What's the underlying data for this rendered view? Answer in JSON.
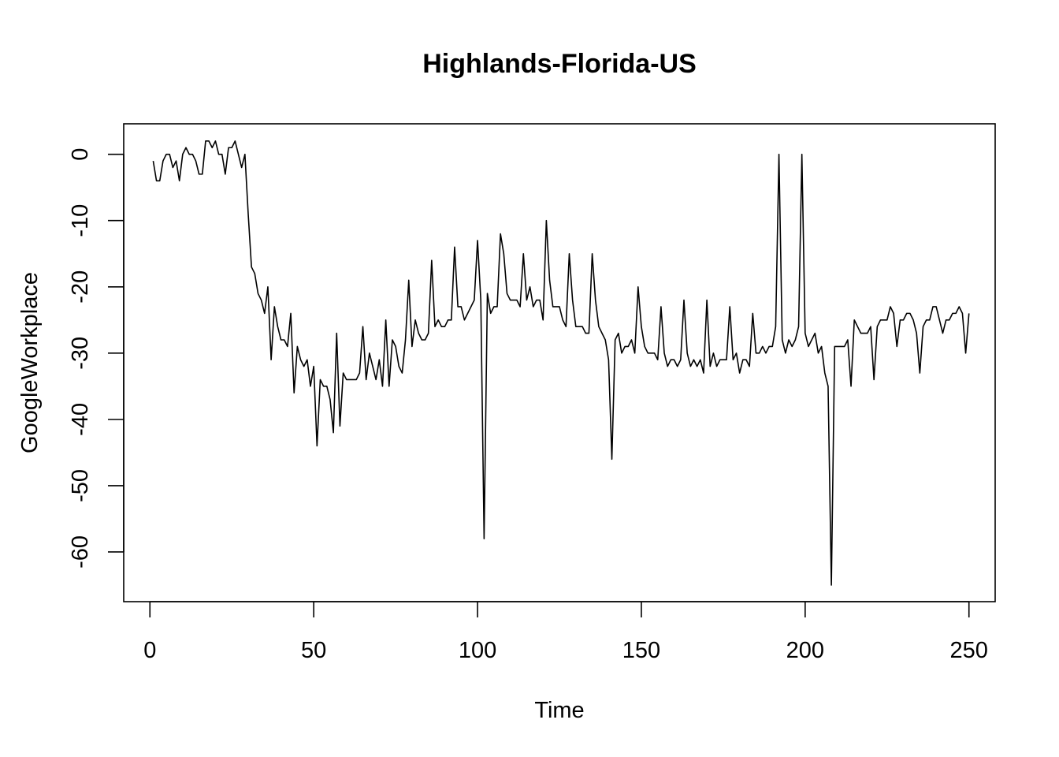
{
  "chart_data": {
    "type": "line",
    "title": "Highlands-Florida-US",
    "xlabel": "Time",
    "ylabel": "GoogleWorkplace",
    "xlim": [
      -8,
      258
    ],
    "ylim": [
      -67.5,
      4.6
    ],
    "x_ticks": [
      0,
      50,
      100,
      150,
      200,
      250
    ],
    "y_ticks": [
      0,
      -10,
      -20,
      -30,
      -40,
      -50,
      -60
    ],
    "grid": false,
    "series": [
      {
        "x_start": 1,
        "values": [
          -1,
          -4,
          -4,
          -1,
          0,
          0,
          -2,
          -1,
          -4,
          0,
          1,
          0,
          0,
          -1,
          -3,
          -3,
          2,
          2,
          1,
          2,
          0,
          0,
          -3,
          1,
          1,
          2,
          0,
          -2,
          0,
          -9,
          -17,
          -18,
          -21,
          -22,
          -24,
          -20,
          -31,
          -23,
          -26,
          -28,
          -28,
          -29,
          -24,
          -36,
          -29,
          -31,
          -32,
          -31,
          -35,
          -32,
          -44,
          -34,
          -35,
          -35,
          -37,
          -42,
          -27,
          -41,
          -33,
          -34,
          -34,
          -34,
          -34,
          -33,
          -26,
          -34,
          -30,
          -32,
          -34,
          -31,
          -35,
          -25,
          -35,
          -28,
          -29,
          -32,
          -33,
          -28,
          -19,
          -29,
          -25,
          -27,
          -28,
          -28,
          -27,
          -16,
          -26,
          -25,
          -26,
          -26,
          -25,
          -25,
          -14,
          -23,
          -23,
          -25,
          -24,
          -23,
          -22,
          -13,
          -22,
          -58,
          -21,
          -24,
          -23,
          -23,
          -12,
          -15,
          -21,
          -22,
          -22,
          -22,
          -23,
          -15,
          -22,
          -20,
          -23,
          -22,
          -22,
          -25,
          -10,
          -19,
          -23,
          -23,
          -23,
          -25,
          -26,
          -15,
          -22,
          -26,
          -26,
          -26,
          -27,
          -27,
          -15,
          -22,
          -26,
          -27,
          -28,
          -31,
          -46,
          -28,
          -27,
          -30,
          -29,
          -29,
          -28,
          -30,
          -20,
          -26,
          -29,
          -30,
          -30,
          -30,
          -31,
          -23,
          -30,
          -32,
          -31,
          -31,
          -32,
          -31,
          -22,
          -30,
          -32,
          -31,
          -32,
          -31,
          -33,
          -22,
          -32,
          -30,
          -32,
          -31,
          -31,
          -31,
          -23,
          -31,
          -30,
          -33,
          -31,
          -31,
          -32,
          -24,
          -30,
          -30,
          -29,
          -30,
          -29,
          -29,
          -26,
          0,
          -28,
          -30,
          -28,
          -29,
          -28,
          -26,
          0,
          -27,
          -29,
          -28,
          -27,
          -30,
          -29,
          -33,
          -35,
          -65,
          -29,
          -29,
          -29,
          -29,
          -28,
          -35,
          -25,
          -26,
          -27,
          -27,
          -27,
          -26,
          -34,
          -26,
          -25,
          -25,
          -25,
          -23,
          -24,
          -29,
          -25,
          -25,
          -24,
          -24,
          -25,
          -27,
          -33,
          -26,
          -25,
          -25,
          -23,
          -23,
          -25,
          -27,
          -25,
          -25,
          -24,
          -24,
          -23,
          -24,
          -30,
          -24
        ]
      }
    ]
  }
}
